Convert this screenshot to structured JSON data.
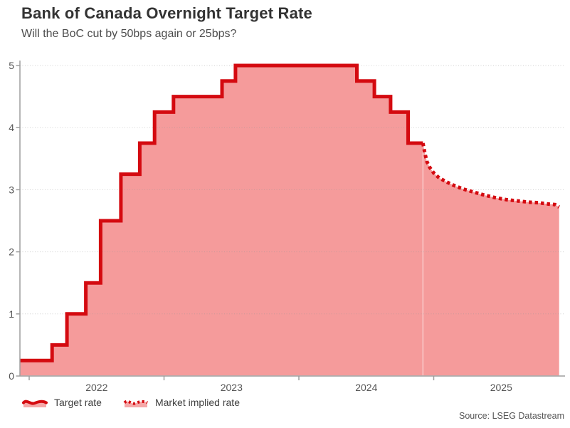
{
  "source": "Source: LSEG Datastream",
  "legend": {
    "items": [
      {
        "label": "Target rate",
        "icon": "solid-area-wave-icon"
      },
      {
        "label": "Market implied rate",
        "icon": "dotted-area-wave-icon"
      }
    ]
  },
  "chart_data": {
    "type": "line",
    "title": "Bank of Canada Overnight Target Rate",
    "subtitle": "Will the BoC cut by 50bps again or 25bps?",
    "xlabel": "",
    "ylabel": "",
    "ylim": [
      0,
      5
    ],
    "yticks": [
      0,
      1,
      2,
      3,
      4,
      5
    ],
    "xticks": [
      2022,
      2023,
      2024,
      2025
    ],
    "x_range_years": [
      2021.93,
      2025.93
    ],
    "grid": "horizontal-dotted",
    "legend_position": "bottom-left",
    "colors": {
      "line": "#d40a10",
      "fill": "#f59b9b",
      "fill_legend": "#f5a8a8",
      "axis": "#9e9e9e",
      "grid": "#dcdcdc",
      "tick_text": "#555555"
    },
    "series": [
      {
        "name": "Target rate",
        "mode": "step",
        "line": "solid",
        "points": [
          [
            2021.93,
            0.25
          ],
          [
            2022.17,
            0.5
          ],
          [
            2022.28,
            1.0
          ],
          [
            2022.42,
            1.5
          ],
          [
            2022.53,
            2.5
          ],
          [
            2022.68,
            3.25
          ],
          [
            2022.82,
            3.75
          ],
          [
            2022.93,
            4.25
          ],
          [
            2023.07,
            4.5
          ],
          [
            2023.43,
            4.75
          ],
          [
            2023.53,
            5.0
          ],
          [
            2024.43,
            4.75
          ],
          [
            2024.56,
            4.5
          ],
          [
            2024.68,
            4.25
          ],
          [
            2024.81,
            3.75
          ],
          [
            2024.92,
            3.75
          ]
        ]
      },
      {
        "name": "Market implied rate",
        "mode": "linear",
        "line": "dotted",
        "points": [
          [
            2024.92,
            3.75
          ],
          [
            2024.935,
            3.58
          ],
          [
            2024.95,
            3.45
          ],
          [
            2024.97,
            3.36
          ],
          [
            2025.0,
            3.27
          ],
          [
            2025.04,
            3.19
          ],
          [
            2025.1,
            3.12
          ],
          [
            2025.16,
            3.06
          ],
          [
            2025.22,
            3.01
          ],
          [
            2025.3,
            2.96
          ],
          [
            2025.38,
            2.91
          ],
          [
            2025.46,
            2.87
          ],
          [
            2025.54,
            2.84
          ],
          [
            2025.62,
            2.82
          ],
          [
            2025.7,
            2.8
          ],
          [
            2025.78,
            2.79
          ],
          [
            2025.85,
            2.77
          ],
          [
            2025.9,
            2.76
          ],
          [
            2025.93,
            2.72
          ]
        ]
      }
    ]
  }
}
